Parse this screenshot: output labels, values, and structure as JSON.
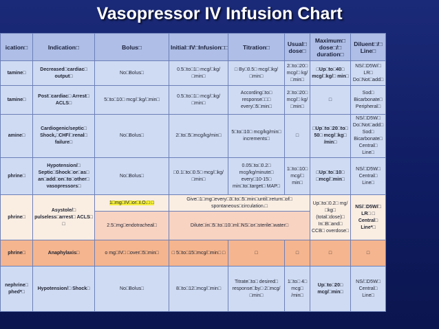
{
  "title": "Vasopressor IV Infusion  Chart",
  "headers": {
    "medication": "ication□",
    "indication": "Indication□",
    "bolus": "Bolus□",
    "initial": "Initial□IV□Infusion□□□",
    "titration": "Titration□",
    "usual_dose": "Usual□ dose□",
    "max_dose": "Maximum□ dose□/□ duration□",
    "diluent": "Diluent□/□ Line□"
  },
  "rows": {
    "r1": {
      "med": "tamine□",
      "indication": "Decreased□cardiac□ output□",
      "bolus": "No□Bolus□",
      "initial": "0.5□to□1□ mcg/□kg/□min□",
      "titration": "□ By□0.5□ mcg/□kg/□min□",
      "usual": "2□to□20□ mcg/□ kg/□min□",
      "max": "□Up□to□40□ mcg/□kg/□ min□",
      "diluent": "NS/□D5W/□ LR□ Do□Not□add□"
    },
    "r2": {
      "med": "tamine□",
      "indication": "Post□cardiac□ Arrest□ ACLS□",
      "bolus": "5□to□10□ mcg/□kg/□min□",
      "initial": "0.5□to□1□ mcg/□kg/□min□",
      "titration": "According□to□ response□□□ every□5□min□",
      "usual": "2□to□20□ mcg/□ kg/□min□",
      "max": "□",
      "diluent": "Sod□ Bicarbonate□ Peripheral□"
    },
    "r3": {
      "med": "amine□",
      "indication": "Cardiogenic/septic□ Shock,□CHF/□renal□ failure□",
      "bolus": "No□Bolus□",
      "initial": "2□to□5□mcg/kg/min□",
      "titration": "5□to□10□ mcg/kg/min□ increments□",
      "usual": "□",
      "max": "□Up□to□20□to□ 50□ mcg/□kg□ /min□",
      "diluent": "NS/□D5W□ Do□Not□add□ Sod□ Bicarbonate□ Central□ Line□"
    },
    "r4": {
      "med": "phrine□",
      "indication": "Hypotension/□ Septic□Shock□or□as□ an□add□on□to□other□ vasopressors□",
      "bolus": "No□Bolus□",
      "initial": "□0.1□to□0.5□ mcg/□kg/□min□",
      "titration": "0.05□to□0.2□ mcg/kg/minute□ every□10-15□ min□to□target□ MAP□",
      "usual": "1□to□10□ mcg/□ min□",
      "max": "□Up□to□10□ □mcg/□min□",
      "diluent": "NS/□D5W□ Central□ Line□"
    },
    "r5": {
      "med": "phrine□",
      "indication": "Asystole/□ pulseless□arrest□ ACLS□ □",
      "bolus_a": "1□mg□IV□or□I.O.□ □",
      "initial_a": "Give□1□mg□every□3□to□5□min□until□return□of□ spontaneous□circulation.□",
      "bolus_b": "2.5□mg□endotracheal□",
      "initial_b": "Dilute□in□5□to□10□ml□NS□or□sterile□water□",
      "max": "Up□to□0.2□ mg/□kg□ (total□dose)□ In□B□and□ CCB□ overdose□",
      "diluent": "NS/□D5W/□ LR□ □ Central□ Line*□"
    },
    "r6": {
      "med": "phrine□",
      "indication": "Anaphylaxis□",
      "bolus": "o  mg□IV□ □over□5□min□",
      "initial": "□ 5□to□15□mcg/□min□ □",
      "titration": "□",
      "usual": "□",
      "max": "□",
      "diluent": "□"
    },
    "r7": {
      "med": "nephrine□ phed*□",
      "indication": "Hypotension/□ Shock□",
      "bolus": "No□Bolus□",
      "initial": "8□to□12□mcg/□min□",
      "titration": "Titrate□to□ desired□ response□by□ 2□mcg/□min□",
      "usual": "1□to□ 4□ mcg□ /min□",
      "max": "Up□to□20□ mcg/□min□",
      "diluent": "NS/□D5W□ Central□ Line□"
    }
  },
  "colors": {
    "background": "#13226a",
    "header": "#aebee6",
    "row_blue": "#cfdbf3",
    "row_peach": "#f5b58e",
    "highlight": "#f5ef3a"
  }
}
